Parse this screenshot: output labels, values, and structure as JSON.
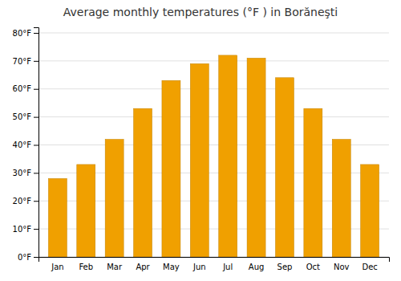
{
  "chart_data": {
    "type": "bar",
    "title": "Average monthly temperatures (°F ) in Borăneşti",
    "categories": [
      "Jan",
      "Feb",
      "Mar",
      "Apr",
      "May",
      "Jun",
      "Jul",
      "Aug",
      "Sep",
      "Oct",
      "Nov",
      "Dec"
    ],
    "values": [
      28,
      33,
      42,
      53,
      63,
      69,
      72,
      71,
      64,
      53,
      42,
      33
    ],
    "color": "#F0A000",
    "ylim": [
      0,
      82
    ],
    "yticks": [
      {
        "value": 0,
        "label": "0°F"
      },
      {
        "value": 10,
        "label": "10°F"
      },
      {
        "value": 20,
        "label": "20°F"
      },
      {
        "value": 30,
        "label": "30°F"
      },
      {
        "value": 40,
        "label": "40°F"
      },
      {
        "value": 50,
        "label": "50°F"
      },
      {
        "value": 60,
        "label": "60°F"
      },
      {
        "value": 70,
        "label": "70°F"
      },
      {
        "value": 80,
        "label": "80°F"
      }
    ],
    "grid": true
  }
}
